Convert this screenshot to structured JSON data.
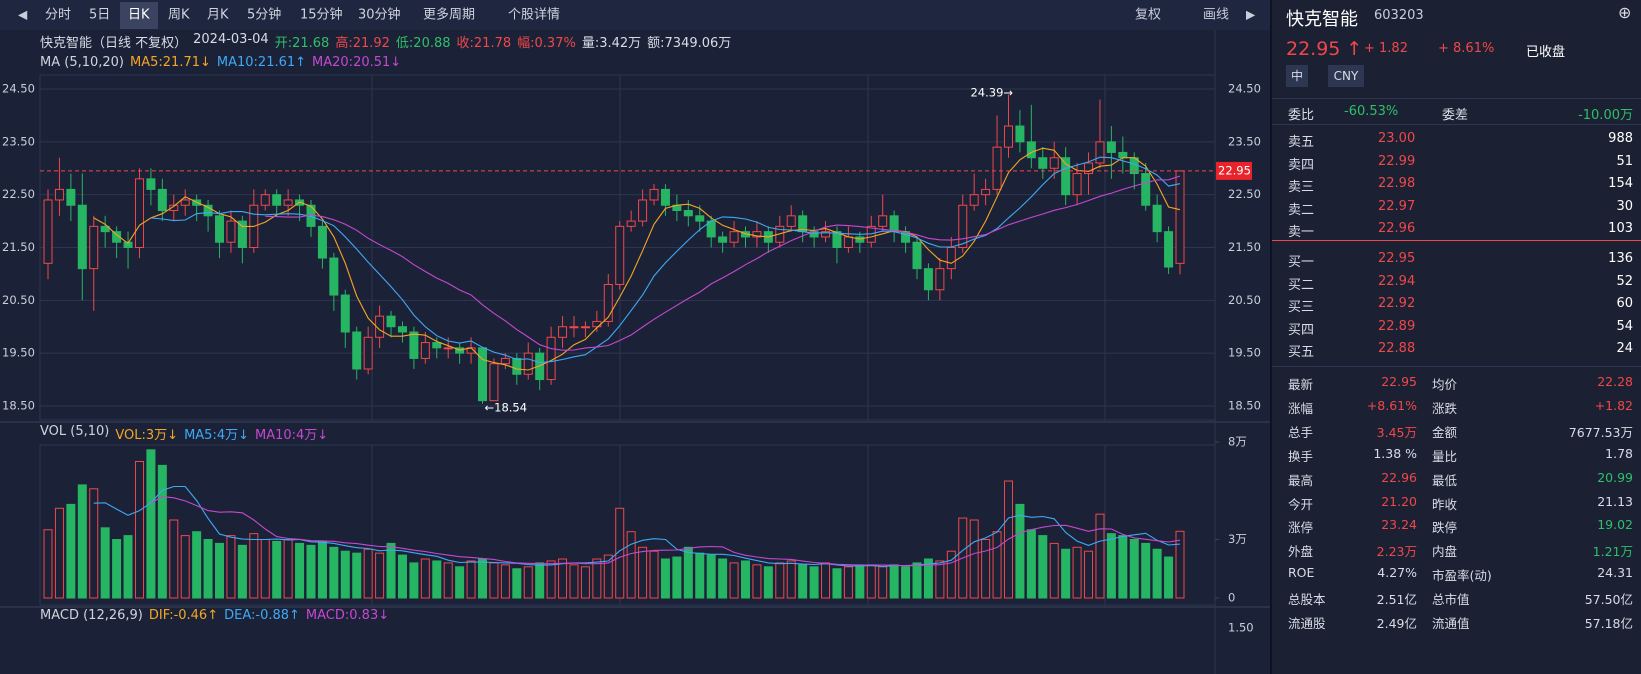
{
  "toolbar": {
    "periods": [
      "分时",
      "5日",
      "日K",
      "周K",
      "月K",
      "5分钟",
      "15分钟",
      "30分钟",
      "更多周期",
      "个股详情"
    ],
    "active": 2,
    "right": [
      "复权",
      "画线"
    ]
  },
  "info": [
    "快克智能（日线 不复权）",
    "2024-03-04",
    "开:21.68",
    "高:21.92",
    "低:20.88",
    "收:21.78",
    "幅:0.37%",
    "量:3.42万",
    "额:7349.06万"
  ],
  "info_tone": [
    "w",
    "w",
    "g",
    "r",
    "g",
    "r",
    "r",
    "w",
    "w"
  ],
  "ma_legend": [
    "MA (5,10,20)",
    "MA5:21.71↓",
    "MA10:21.61↑",
    "MA20:20.51↓"
  ],
  "vol_legend": [
    "VOL (5,10)",
    "VOL:3万↓",
    "MA5:4万↓",
    "MA10:4万↓"
  ],
  "macd_legend": [
    "MACD (12,26,9)",
    "DIF:-0.46↑",
    "DEA:-0.88↑",
    "MACD:0.83↓"
  ],
  "chart": {
    "type": "candlestick",
    "yticks": [
      {
        "value": 24.5,
        "label": "24.50"
      },
      {
        "value": 23.5,
        "label": "23.50"
      },
      {
        "value": 22.5,
        "label": "22.50"
      },
      {
        "value": 21.5,
        "label": "21.50"
      },
      {
        "value": 20.5,
        "label": "20.50"
      },
      {
        "value": 19.5,
        "label": "19.50"
      },
      {
        "value": 18.5,
        "label": "18.50"
      }
    ],
    "ylim": [
      18.234,
      24.766
    ],
    "last": {
      "value": 22.95,
      "label": "22.95"
    },
    "high_label": "24.39→",
    "low_label": "←18.54",
    "opens": [
      21.2,
      22.4,
      22.6,
      22.3,
      21.1,
      21.9,
      21.8,
      21.6,
      21.5,
      22.8,
      22.6,
      22.2,
      22.3,
      22.4,
      22.3,
      22.1,
      21.6,
      22.0,
      21.5,
      22.3,
      22.5,
      22.3,
      22.4,
      22.3,
      21.9,
      21.3,
      20.6,
      19.9,
      19.2,
      19.8,
      20.2,
      20.0,
      19.9,
      19.4,
      19.7,
      19.6,
      19.6,
      19.5,
      19.6,
      18.6,
      19.3,
      19.4,
      19.1,
      19.5,
      19.0,
      19.8,
      20.0,
      20.0,
      20.0,
      20.1,
      20.8,
      21.9,
      22.0,
      22.4,
      22.6,
      22.3,
      22.2,
      22.1,
      22.0,
      21.7,
      21.6,
      21.8,
      21.7,
      21.8,
      21.6,
      21.9,
      22.1,
      21.8,
      21.7,
      21.8,
      21.5,
      21.7,
      21.6,
      21.9,
      22.1,
      21.8,
      21.6,
      21.1,
      20.7,
      21.1,
      21.5,
      22.3,
      22.5,
      22.6,
      23.4,
      23.8,
      23.5,
      23.2,
      23.0,
      23.2,
      22.5,
      22.9,
      23.1,
      23.5,
      23.3,
      23.2,
      22.9,
      22.3,
      21.8,
      21.2
    ],
    "highs": [
      22.6,
      23.2,
      22.9,
      22.9,
      22.1,
      22.1,
      21.9,
      21.8,
      23.0,
      23.0,
      22.8,
      22.5,
      22.6,
      22.5,
      22.4,
      22.2,
      22.2,
      22.1,
      22.6,
      22.6,
      22.6,
      22.6,
      22.5,
      22.4,
      22.0,
      21.4,
      20.7,
      20.0,
      20.0,
      20.4,
      20.3,
      20.1,
      20.0,
      19.9,
      19.8,
      19.8,
      19.7,
      19.8,
      19.6,
      19.4,
      19.5,
      19.5,
      19.7,
      19.6,
      20.0,
      20.2,
      20.2,
      20.1,
      20.3,
      21.0,
      22.0,
      22.2,
      22.6,
      22.7,
      22.7,
      22.5,
      22.4,
      22.3,
      22.1,
      21.8,
      22.0,
      21.9,
      22.0,
      21.9,
      22.1,
      22.3,
      22.2,
      21.9,
      22.0,
      21.9,
      21.9,
      21.8,
      22.1,
      22.5,
      22.2,
      21.9,
      21.7,
      21.2,
      21.3,
      21.7,
      22.5,
      22.9,
      22.8,
      24.0,
      24.39,
      24.1,
      24.2,
      23.4,
      23.5,
      23.4,
      23.1,
      23.3,
      24.3,
      23.8,
      23.6,
      23.3,
      23.1,
      22.5,
      21.9,
      22.96
    ],
    "lows": [
      20.9,
      22.1,
      22.0,
      20.5,
      20.3,
      21.5,
      21.3,
      21.1,
      21.3,
      22.3,
      22.0,
      22.0,
      22.1,
      22.0,
      21.8,
      21.3,
      21.4,
      21.2,
      21.4,
      22.2,
      22.1,
      22.1,
      22.0,
      21.7,
      21.1,
      20.3,
      19.6,
      19.0,
      19.1,
      19.6,
      19.8,
      19.7,
      19.2,
      19.3,
      19.4,
      19.4,
      19.3,
      19.3,
      18.54,
      18.6,
      19.2,
      18.9,
      19.0,
      18.8,
      18.9,
      19.6,
      19.8,
      19.8,
      19.9,
      20.0,
      20.7,
      21.8,
      21.9,
      22.3,
      22.1,
      22.0,
      21.9,
      21.8,
      21.5,
      21.4,
      21.5,
      21.5,
      21.5,
      21.4,
      21.5,
      21.8,
      21.6,
      21.5,
      21.6,
      21.2,
      21.4,
      21.4,
      21.5,
      21.8,
      21.6,
      21.4,
      20.9,
      20.5,
      20.5,
      20.9,
      21.4,
      22.2,
      22.3,
      22.5,
      23.2,
      23.3,
      23.0,
      22.8,
      22.8,
      22.3,
      22.3,
      22.5,
      23.0,
      22.8,
      22.9,
      22.6,
      22.2,
      21.6,
      21.0,
      20.99
    ],
    "closes": [
      22.4,
      22.6,
      22.3,
      21.1,
      21.9,
      21.8,
      21.6,
      21.5,
      22.8,
      22.6,
      22.2,
      22.3,
      22.4,
      22.3,
      22.1,
      21.6,
      22.0,
      21.5,
      22.3,
      22.5,
      22.3,
      22.4,
      22.3,
      21.9,
      21.3,
      20.6,
      19.9,
      19.2,
      19.8,
      20.2,
      20.0,
      19.9,
      19.4,
      19.7,
      19.6,
      19.6,
      19.5,
      19.6,
      18.6,
      19.3,
      19.4,
      19.1,
      19.5,
      19.0,
      19.8,
      20.0,
      20.0,
      20.0,
      20.1,
      20.8,
      21.9,
      22.0,
      22.4,
      22.6,
      22.3,
      22.2,
      22.1,
      22.0,
      21.7,
      21.6,
      21.8,
      21.7,
      21.8,
      21.6,
      21.9,
      22.1,
      21.8,
      21.7,
      21.8,
      21.5,
      21.7,
      21.6,
      21.9,
      22.1,
      21.8,
      21.6,
      21.1,
      20.7,
      21.1,
      21.5,
      22.3,
      22.5,
      22.6,
      23.4,
      23.8,
      23.5,
      23.2,
      23.0,
      23.2,
      22.5,
      22.9,
      23.1,
      23.5,
      23.3,
      23.2,
      22.9,
      22.3,
      21.8,
      21.13,
      22.95
    ],
    "volumes": [
      3.5,
      4.6,
      4.8,
      5.8,
      5.6,
      3.6,
      3.0,
      3.2,
      7.0,
      7.6,
      6.8,
      4.0,
      3.2,
      3.4,
      3.0,
      2.8,
      3.2,
      2.7,
      3.3,
      3.0,
      2.9,
      3.0,
      2.8,
      2.7,
      2.9,
      2.6,
      2.4,
      2.3,
      2.5,
      2.3,
      2.8,
      2.2,
      1.8,
      2.0,
      1.9,
      1.8,
      1.6,
      1.9,
      2.0,
      1.8,
      1.7,
      1.5,
      1.6,
      1.8,
      1.9,
      2.0,
      1.7,
      1.6,
      2.0,
      2.2,
      4.6,
      3.4,
      2.6,
      2.4,
      2.0,
      2.1,
      2.6,
      2.3,
      2.2,
      2.0,
      1.8,
      1.9,
      1.7,
      1.6,
      1.8,
      1.9,
      1.7,
      1.6,
      1.8,
      1.5,
      1.6,
      1.7,
      1.7,
      1.6,
      1.7,
      1.6,
      1.8,
      2.0,
      1.9,
      2.4,
      4.1,
      4.0,
      3.0,
      3.4,
      6.0,
      4.8,
      3.5,
      3.2,
      2.8,
      2.5,
      2.6,
      2.4,
      4.3,
      3.3,
      3.2,
      3.0,
      2.8,
      2.5,
      2.1,
      3.42
    ],
    "vol_ylim": [
      0,
      8
    ],
    "vol_ticks": [
      {
        "value": 8,
        "label": "8万"
      },
      {
        "value": 3,
        "label": "3万"
      },
      0
    ],
    "macd_tick": "1.50"
  },
  "quote": {
    "name": "快克智能",
    "code": "603203",
    "price": "22.95 ↑",
    "change": "+ 1.82",
    "pct": "+ 8.61%",
    "status": "已收盘",
    "badges": [
      "中",
      "CNY"
    ],
    "wb": [
      "委比",
      "-60.53%",
      "委差",
      "-10.00万"
    ],
    "sell": [
      [
        "卖五",
        "23.00",
        "988"
      ],
      [
        "卖四",
        "22.99",
        "51"
      ],
      [
        "卖三",
        "22.98",
        "154"
      ],
      [
        "卖二",
        "22.97",
        "30"
      ],
      [
        "卖一",
        "22.96",
        "103"
      ]
    ],
    "buy": [
      [
        "买一",
        "22.95",
        "136"
      ],
      [
        "买二",
        "22.94",
        "52"
      ],
      [
        "买三",
        "22.92",
        "60"
      ],
      [
        "买四",
        "22.89",
        "54"
      ],
      [
        "买五",
        "22.88",
        "24"
      ]
    ],
    "stats": [
      [
        "最新",
        "22.95",
        "均价",
        "22.28"
      ],
      [
        "涨幅",
        "+8.61%",
        "涨跌",
        "+1.82"
      ],
      [
        "总手",
        "3.45万",
        "金额",
        "7677.53万"
      ],
      [
        "换手",
        "1.38 %",
        "量比",
        "1.78"
      ],
      [
        "最高",
        "22.96",
        "最低",
        "20.99"
      ],
      [
        "今开",
        "21.20",
        "昨收",
        "21.13"
      ],
      [
        "涨停",
        "23.24",
        "跌停",
        "19.02"
      ],
      [
        "外盘",
        "2.23万",
        "内盘",
        "1.21万"
      ],
      [
        "ROE",
        "4.27%",
        "市盈率(动)",
        "24.31"
      ],
      [
        "总股本",
        "2.51亿",
        "总市值",
        "57.50亿"
      ],
      [
        "流通股",
        "2.49亿",
        "流通值",
        "57.18亿"
      ]
    ],
    "stats_tone": [
      [
        "r",
        "r"
      ],
      [
        "r",
        "r"
      ],
      [
        "r",
        "w"
      ],
      [
        "w",
        "w"
      ],
      [
        "r",
        "g"
      ],
      [
        "r",
        "w"
      ],
      [
        "r",
        "g"
      ],
      [
        "r",
        "g"
      ],
      [
        "w",
        "w"
      ],
      [
        "w",
        "w"
      ],
      [
        "w",
        "w"
      ]
    ]
  }
}
